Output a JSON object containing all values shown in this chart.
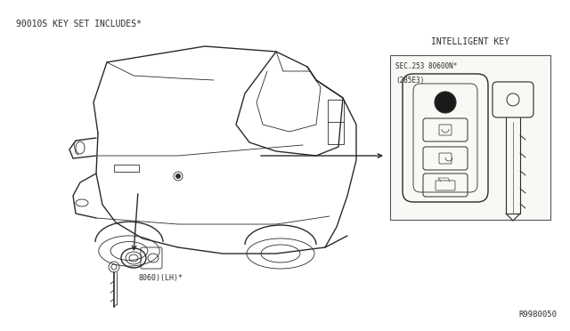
{
  "bg_color": "#ffffff",
  "title_text": "90010S KEY SET INCLUDES*",
  "title_fontsize": 7,
  "ref_code": "R9980050",
  "intelligent_key_label": "INTELLIGENT KEY",
  "box_label_line1": "SEC.253 80600N*",
  "box_label_line2": "(285E3)",
  "lock_label": "8060)(LH)*",
  "line_color": "#2a2a2a",
  "lw_main": 1.0,
  "lw_thin": 0.6
}
